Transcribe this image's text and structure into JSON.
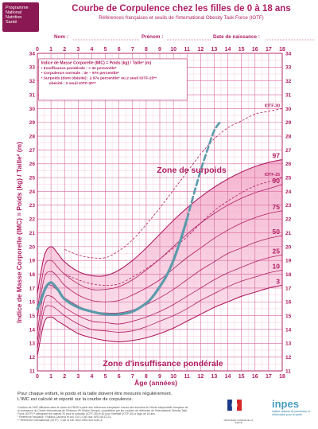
{
  "header": {
    "logo_lines": [
      "Programme",
      "National",
      "Nutrition",
      "Santé"
    ],
    "title": "Courbe de Corpulence chez les filles de 0 à 18 ans",
    "subtitle": "Références françaises et seuils de l'International Obesity Task Force (IOTF)",
    "nom_label": "Nom :",
    "prenom_label": "Prénom :",
    "naissance_label": "Date de naissance :"
  },
  "colors": {
    "accent": "#b01e63",
    "grid_major": "#d9689c",
    "grid_minor": "#f2c2d8",
    "band_fill": "#f3a8c8",
    "band_fill_light": "#f8d3e3",
    "curve": "#b01e63",
    "patient": "#5b9bab"
  },
  "chart_data": {
    "type": "line",
    "ylabel": "Indice de Masse Corporelle (IMC) = Poids (kg) / Taille² (m)",
    "xlabel": "Âge (années)",
    "xlim": [
      0,
      18
    ],
    "ylim": [
      11,
      34
    ],
    "x_ticks": [
      0,
      1,
      2,
      3,
      4,
      5,
      6,
      7,
      8,
      9,
      10,
      11,
      12,
      13,
      14,
      15,
      16,
      17,
      18
    ],
    "y_ticks": [
      11,
      12,
      13,
      14,
      15,
      16,
      17,
      18,
      19,
      20,
      21,
      22,
      23,
      24,
      25,
      26,
      27,
      28,
      29,
      30,
      31,
      32,
      33,
      34
    ],
    "grid": true,
    "legend_placement": "top-left",
    "legend": [
      "Indice de Masse Corporelle (IMC) = Poids (kg) / Taille² (m)",
      "Insuffisance pondérale : < 3e percentile*",
      "Corpulence normale : 3e – 97e percentile*",
      "Surpoids (dont obésité) : ≥ 97e percentile* ou ≥ seuil IOTF-25**",
      "obésité : ≥ seuil IOTF-30**"
    ],
    "zone_labels": {
      "surpoids": "Zone de surpoids",
      "insuffisance": "Zone d'insuffisance pondérale"
    },
    "series": [
      {
        "name": "97",
        "x": [
          0,
          0.5,
          1,
          1.5,
          2,
          3,
          4,
          5,
          6,
          7,
          8,
          9,
          10,
          11,
          12,
          13,
          14,
          15,
          16,
          17,
          18
        ],
        "values": [
          16.6,
          19.3,
          20.0,
          19.5,
          18.9,
          18.2,
          17.9,
          17.9,
          18.3,
          19.0,
          19.9,
          20.9,
          21.9,
          22.8,
          23.6,
          24.3,
          24.9,
          25.4,
          25.8,
          26.1,
          26.3
        ]
      },
      {
        "name": "90",
        "x": [
          0,
          0.5,
          1,
          1.5,
          2,
          3,
          4,
          5,
          6,
          7,
          8,
          9,
          10,
          11,
          12,
          13,
          14,
          15,
          16,
          17,
          18
        ],
        "values": [
          15.4,
          18.5,
          19.0,
          18.5,
          18.0,
          17.3,
          16.9,
          16.9,
          17.1,
          17.6,
          18.3,
          19.1,
          20.0,
          20.9,
          21.7,
          22.4,
          23.0,
          23.5,
          23.9,
          24.2,
          24.5
        ]
      },
      {
        "name": "75",
        "x": [
          0,
          0.5,
          1,
          1.5,
          2,
          3,
          4,
          5,
          6,
          7,
          8,
          9,
          10,
          11,
          12,
          13,
          14,
          15,
          16,
          17,
          18
        ],
        "values": [
          14.8,
          17.7,
          18.2,
          17.8,
          17.2,
          16.5,
          16.1,
          16.0,
          16.1,
          16.5,
          17.0,
          17.6,
          18.4,
          19.2,
          19.9,
          20.6,
          21.2,
          21.7,
          22.1,
          22.4,
          22.6
        ]
      },
      {
        "name": "50",
        "x": [
          0,
          0.5,
          1,
          1.5,
          2,
          3,
          4,
          5,
          6,
          7,
          8,
          9,
          10,
          11,
          12,
          13,
          14,
          15,
          16,
          17,
          18
        ],
        "values": [
          13.8,
          16.9,
          17.2,
          16.8,
          16.3,
          15.7,
          15.3,
          15.2,
          15.2,
          15.4,
          15.8,
          16.3,
          16.9,
          17.6,
          18.3,
          18.9,
          19.5,
          19.9,
          20.3,
          20.6,
          20.8
        ]
      },
      {
        "name": "25",
        "x": [
          0,
          0.5,
          1,
          1.5,
          2,
          3,
          4,
          5,
          6,
          7,
          8,
          9,
          10,
          11,
          12,
          13,
          14,
          15,
          16,
          17,
          18
        ],
        "values": [
          13.1,
          16.1,
          16.4,
          16.0,
          15.6,
          15.0,
          14.6,
          14.5,
          14.4,
          14.6,
          14.9,
          15.3,
          15.8,
          16.4,
          17.0,
          17.6,
          18.1,
          18.5,
          18.9,
          19.2,
          19.4
        ]
      },
      {
        "name": "10",
        "x": [
          0,
          0.5,
          1,
          1.5,
          2,
          3,
          4,
          5,
          6,
          7,
          8,
          9,
          10,
          11,
          12,
          13,
          14,
          15,
          16,
          17,
          18
        ],
        "values": [
          12.6,
          15.4,
          15.7,
          15.4,
          15.0,
          14.4,
          14.0,
          13.9,
          13.8,
          13.9,
          14.2,
          14.6,
          15.0,
          15.5,
          16.1,
          16.6,
          17.1,
          17.5,
          17.8,
          18.1,
          18.3
        ]
      },
      {
        "name": "3",
        "x": [
          0,
          0.5,
          1,
          1.5,
          2,
          3,
          4,
          5,
          6,
          7,
          8,
          9,
          10,
          11,
          12,
          13,
          14,
          15,
          16,
          17,
          18
        ],
        "values": [
          12.1,
          14.5,
          14.9,
          14.6,
          14.3,
          13.7,
          13.4,
          13.2,
          13.1,
          13.2,
          13.4,
          13.7,
          14.1,
          14.6,
          15.1,
          15.6,
          16.0,
          16.4,
          16.7,
          17.0,
          17.2
        ]
      },
      {
        "name": "IOTF-25",
        "x": [
          2,
          3,
          4,
          5,
          6,
          7,
          8,
          9,
          10,
          11,
          12,
          13,
          14,
          15,
          16,
          17,
          18
        ],
        "values": [
          18.0,
          17.6,
          17.3,
          17.2,
          17.3,
          17.8,
          18.4,
          19.1,
          19.9,
          20.7,
          21.7,
          22.6,
          23.3,
          23.9,
          24.4,
          24.7,
          25.0
        ]
      },
      {
        "name": "IOTF-30",
        "x": [
          2,
          3,
          4,
          5,
          6,
          7,
          8,
          9,
          10,
          11,
          12,
          13,
          14,
          15,
          16,
          17,
          18
        ],
        "values": [
          19.8,
          19.4,
          19.2,
          19.2,
          19.7,
          20.5,
          21.6,
          22.8,
          24.1,
          25.4,
          26.7,
          27.8,
          28.6,
          29.1,
          29.6,
          29.8,
          30.0
        ]
      },
      {
        "name": "patient",
        "x": [
          0,
          0.3,
          0.6,
          1,
          1.5,
          2,
          3,
          4,
          5,
          6,
          7,
          8,
          8.5,
          9,
          9.5,
          10,
          10.5,
          11,
          11.5,
          12,
          12.5,
          13,
          13.5
        ],
        "values": [
          15.5,
          16.2,
          17.0,
          17.4,
          16.9,
          16.2,
          15.6,
          15.3,
          15.1,
          15.1,
          15.3,
          15.9,
          16.4,
          17.1,
          17.9,
          19.0,
          20.4,
          22.0,
          23.8,
          25.5,
          27.0,
          28.4,
          29.1
        ],
        "solid_until": 11
      }
    ]
  },
  "footer": {
    "line1": "Pour chaque enfant, le poids et la taille doivent être mesurés régulièrement.",
    "line2": "L'IMC est calculé et reporté sur la courbe de corpulence.",
    "small1": "Courbes de l'IMC diffusées dans le cadre du PNNS à partir des références françaises* issues des données de l'étude séquentielle française de",
    "small2": "la croissance du Centre International de l'Enfance (Pr Michel Sempé), complétées par les courbes de référence de l'International Obesity Task",
    "small3": "Force (IOTF)** atteignant les valeurs 25 pour le surpoids (IOTF-25) et 30 pour l'obésité (IOTF-30) à l'âge de 18 ans.",
    "small4": "* Référence française : Rolland-Cachera et coll. Eur J Clin Nutr 1991;45:13-21.",
    "small5": "** Référence internationale (IOTF) : Cole et coll. BMJ 2000;320:1240-3.",
    "ministere": "MINISTÈRE CHARGÉ DE LA SANTÉ",
    "inpes_name": "inpes",
    "inpes_tagline": "Institut national de prévention et d'éducation pour la santé"
  }
}
